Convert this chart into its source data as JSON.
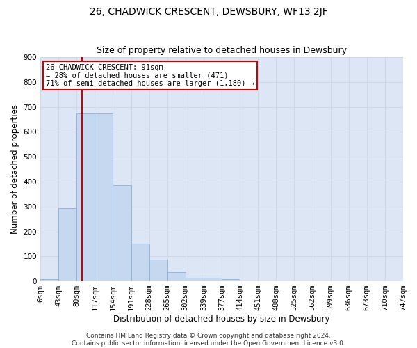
{
  "title": "26, CHADWICK CRESCENT, DEWSBURY, WF13 2JF",
  "subtitle": "Size of property relative to detached houses in Dewsbury",
  "xlabel": "Distribution of detached houses by size in Dewsbury",
  "ylabel": "Number of detached properties",
  "bar_values": [
    10,
    293,
    675,
    675,
    385,
    150,
    87,
    37,
    15,
    15,
    10,
    0,
    0,
    0,
    0,
    0,
    0,
    0,
    0,
    0
  ],
  "bin_labels": [
    "6sqm",
    "43sqm",
    "80sqm",
    "117sqm",
    "154sqm",
    "191sqm",
    "228sqm",
    "265sqm",
    "302sqm",
    "339sqm",
    "377sqm",
    "414sqm",
    "451sqm",
    "488sqm",
    "525sqm",
    "562sqm",
    "599sqm",
    "636sqm",
    "673sqm",
    "710sqm",
    "747sqm"
  ],
  "bar_color": "#c5d8f0",
  "bar_edge_color": "#8ab0d8",
  "vline_color": "#cc0000",
  "vline_pos": 2.3,
  "annotation_text": "26 CHADWICK CRESCENT: 91sqm\n← 28% of detached houses are smaller (471)\n71% of semi-detached houses are larger (1,180) →",
  "annotation_box_facecolor": "#ffffff",
  "annotation_box_edgecolor": "#cc0000",
  "ylim": [
    0,
    900
  ],
  "yticks": [
    0,
    100,
    200,
    300,
    400,
    500,
    600,
    700,
    800,
    900
  ],
  "grid_color": "#d0d8e8",
  "bg_color": "#dce6f5",
  "footer": "Contains HM Land Registry data © Crown copyright and database right 2024.\nContains public sector information licensed under the Open Government Licence v3.0.",
  "title_fontsize": 10,
  "subtitle_fontsize": 9,
  "xlabel_fontsize": 8.5,
  "ylabel_fontsize": 8.5,
  "tick_fontsize": 7.5,
  "footer_fontsize": 6.5,
  "annot_fontsize": 7.5
}
